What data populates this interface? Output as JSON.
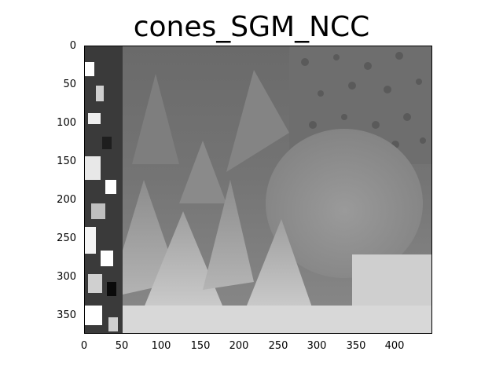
{
  "title": "cones_SGM_NCC",
  "image": "grayscale disparity map (stereo matching result)",
  "xticks": [
    "0",
    "50",
    "100",
    "150",
    "200",
    "250",
    "300",
    "350",
    "400"
  ],
  "yticks": [
    "0",
    "50",
    "100",
    "150",
    "200",
    "250",
    "300",
    "350"
  ]
}
